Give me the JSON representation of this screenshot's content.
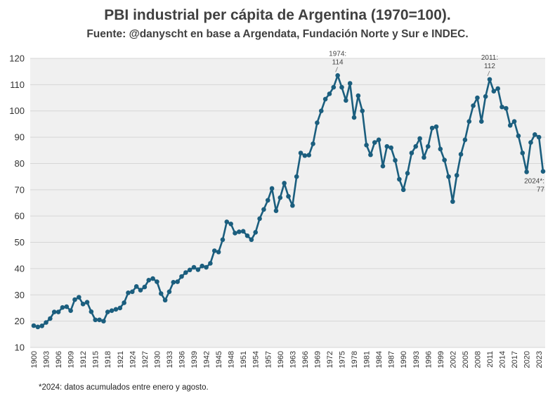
{
  "chart_data": {
    "type": "line",
    "title": "PBI industrial per cápita de Argentina (1970=100).",
    "subtitle": "Fuente: @danyscht  en base a Argendata, Fundación Norte y Sur e INDEC.",
    "xlabel": "",
    "ylabel": "",
    "xlim": [
      1900,
      2024
    ],
    "ylim": [
      10,
      120
    ],
    "yticks": [
      10,
      20,
      30,
      40,
      50,
      60,
      70,
      80,
      90,
      100,
      110,
      120
    ],
    "xticks": [
      "1900",
      "1903",
      "1906",
      "1909",
      "1912",
      "1915",
      "1918",
      "1921",
      "1924",
      "1927",
      "1930",
      "1933",
      "1936",
      "1939",
      "1942",
      "1945",
      "1948",
      "1951",
      "1954",
      "1957",
      "1960",
      "1963",
      "1966",
      "1969",
      "1972",
      "1975",
      "1978",
      "1981",
      "1984",
      "1987",
      "1990",
      "1993",
      "1996",
      "1999",
      "2002",
      "2005",
      "2008",
      "2011",
      "2014",
      "2017",
      "2020",
      "2023"
    ],
    "grid": true,
    "series": [
      {
        "color": "#1b5e7e",
        "x": [
          1900,
          1901,
          1902,
          1903,
          1904,
          1905,
          1906,
          1907,
          1908,
          1909,
          1910,
          1911,
          1912,
          1913,
          1914,
          1915,
          1916,
          1917,
          1918,
          1919,
          1920,
          1921,
          1922,
          1923,
          1924,
          1925,
          1926,
          1927,
          1928,
          1929,
          1930,
          1931,
          1932,
          1933,
          1934,
          1935,
          1936,
          1937,
          1938,
          1939,
          1940,
          1941,
          1942,
          1943,
          1944,
          1945,
          1946,
          1947,
          1948,
          1949,
          1950,
          1951,
          1952,
          1953,
          1954,
          1955,
          1956,
          1957,
          1958,
          1959,
          1960,
          1961,
          1962,
          1963,
          1964,
          1965,
          1966,
          1967,
          1968,
          1969,
          1970,
          1971,
          1972,
          1973,
          1974,
          1975,
          1976,
          1977,
          1978,
          1979,
          1980,
          1981,
          1982,
          1983,
          1984,
          1985,
          1986,
          1987,
          1988,
          1989,
          1990,
          1991,
          1992,
          1993,
          1994,
          1995,
          1996,
          1997,
          1998,
          1999,
          2000,
          2001,
          2002,
          2003,
          2004,
          2005,
          2006,
          2007,
          2008,
          2009,
          2010,
          2011,
          2012,
          2013,
          2014,
          2015,
          2016,
          2017,
          2018,
          2019,
          2020,
          2021,
          2022,
          2023,
          2024
        ],
        "values": [
          18.3,
          17.8,
          18.2,
          19.5,
          21.0,
          23.5,
          23.5,
          25.2,
          25.5,
          24.0,
          28.2,
          29.1,
          26.5,
          27.2,
          23.6,
          20.5,
          20.5,
          20.0,
          23.5,
          24.0,
          24.5,
          25.0,
          27.0,
          30.8,
          31.2,
          33.2,
          31.8,
          33.0,
          35.6,
          36.2,
          35.0,
          30.5,
          28.0,
          31.2,
          34.8,
          35.0,
          37.0,
          38.5,
          39.5,
          40.5,
          39.6,
          41.0,
          40.5,
          42.0,
          46.8,
          46.3,
          51.0,
          57.8,
          57.0,
          53.5,
          54.0,
          54.2,
          52.5,
          51.0,
          53.8,
          59.0,
          62.5,
          66.0,
          70.5,
          62.0,
          67.0,
          72.5,
          67.5,
          64.0,
          75.0,
          84.0,
          83.0,
          83.2,
          87.5,
          95.5,
          100.0,
          104.5,
          106.5,
          109.0,
          113.5,
          109.0,
          104.0,
          110.5,
          97.5,
          105.8,
          100.0,
          87.0,
          83.3,
          88.0,
          89.0,
          79.0,
          86.5,
          86.0,
          81.2,
          74.0,
          70.0,
          76.3,
          84.0,
          86.5,
          89.5,
          82.3,
          86.5,
          93.5,
          94.0,
          85.5,
          81.3,
          75.0,
          65.5,
          75.5,
          83.5,
          89.0,
          96.0,
          102.0,
          105.0,
          96.0,
          105.5,
          112.0,
          107.5,
          108.5,
          101.5,
          101.0,
          94.5,
          96.0,
          90.5,
          84.0,
          76.8,
          88.0,
          91.0,
          90.0,
          77.0
        ]
      }
    ],
    "annotations": [
      {
        "year": 1974,
        "lines": [
          "1974:",
          "114"
        ]
      },
      {
        "year": 2011,
        "lines": [
          "2011:",
          "112"
        ]
      },
      {
        "year": 2024,
        "lines": [
          "2024*:",
          "77"
        ]
      }
    ]
  },
  "footnote": "*2024: datos acumulados entre enero y agosto."
}
